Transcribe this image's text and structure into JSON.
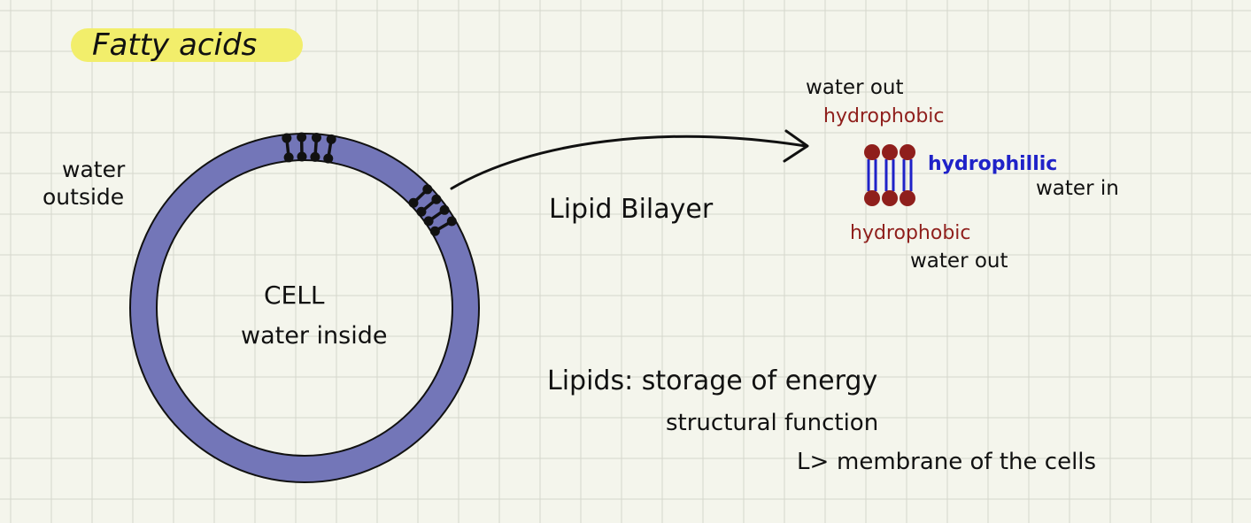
{
  "title": "Fatty acids",
  "cell": {
    "label": "CELL",
    "inside_label": "water inside",
    "outside_label_line1": "water",
    "outside_label_line2": "outside"
  },
  "bilayer": {
    "label": "Lipid Bilayer",
    "top_water": "water out",
    "top_region": "hydrophobic",
    "middle_region": "hydrophillic",
    "middle_water": "water in",
    "bottom_region": "hydrophobic",
    "bottom_water": "water out"
  },
  "notes": {
    "line1": "Lipids: storage of energy",
    "line2": "structural function",
    "line3_arrow": "L>",
    "line3": "membrane of the cells"
  },
  "colors": {
    "background": "#f4f5ec",
    "grid": "#d5d7cc",
    "highlight": "#f2ee6b",
    "membrane": "#7376b8",
    "hydrophobic": "#8f1f1c",
    "hydrophilic": "#1f22c8",
    "ink": "#111111"
  }
}
